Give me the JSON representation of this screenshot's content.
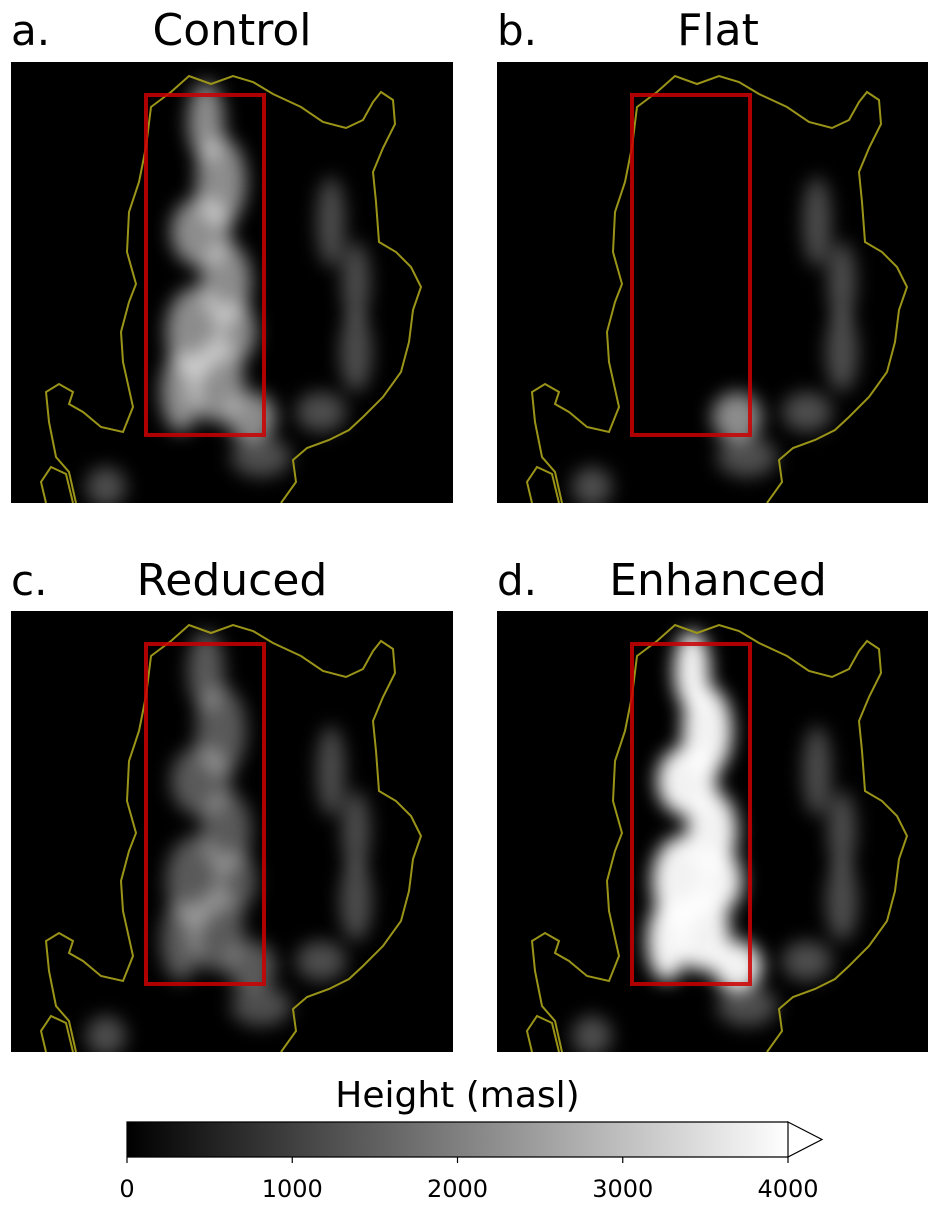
{
  "panels": [
    {
      "letter": "a.",
      "title": "Control"
    },
    {
      "letter": "b.",
      "title": "Flat"
    },
    {
      "letter": "c.",
      "title": "Reduced"
    },
    {
      "letter": "d.",
      "title": "Enhanced"
    }
  ],
  "colorbar": {
    "label": "Height (masl)",
    "lim": [
      0,
      4000
    ],
    "ticks": [
      0,
      1000,
      2000,
      3000,
      4000
    ],
    "extend": "max"
  }
}
